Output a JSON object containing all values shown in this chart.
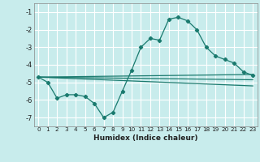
{
  "title": "",
  "xlabel": "Humidex (Indice chaleur)",
  "ylabel": "",
  "background_color": "#c8ecec",
  "grid_color": "#ffffff",
  "line_color": "#1a7a6e",
  "xlim": [
    -0.5,
    23.5
  ],
  "ylim": [
    -7.5,
    -0.5
  ],
  "xticks": [
    0,
    1,
    2,
    3,
    4,
    5,
    6,
    7,
    8,
    9,
    10,
    11,
    12,
    13,
    14,
    15,
    16,
    17,
    18,
    19,
    20,
    21,
    22,
    23
  ],
  "yticks": [
    -1,
    -2,
    -3,
    -4,
    -5,
    -6,
    -7
  ],
  "series1_x": [
    0,
    1,
    2,
    3,
    4,
    5,
    6,
    7,
    8,
    9,
    10,
    11,
    12,
    13,
    14,
    15,
    16,
    17,
    18,
    19,
    20,
    21,
    22,
    23
  ],
  "series1_y": [
    -4.7,
    -5.0,
    -5.9,
    -5.7,
    -5.7,
    -5.8,
    -6.2,
    -7.0,
    -6.7,
    -5.5,
    -4.3,
    -3.0,
    -2.5,
    -2.6,
    -1.4,
    -1.3,
    -1.5,
    -2.0,
    -3.0,
    -3.5,
    -3.7,
    -3.9,
    -4.4,
    -4.6
  ],
  "line2_x": [
    0,
    23
  ],
  "line2_y": [
    -4.7,
    -4.55
  ],
  "line3_x": [
    0,
    23
  ],
  "line3_y": [
    -4.7,
    -4.85
  ],
  "line4_x": [
    0,
    23
  ],
  "line4_y": [
    -4.7,
    -5.2
  ]
}
